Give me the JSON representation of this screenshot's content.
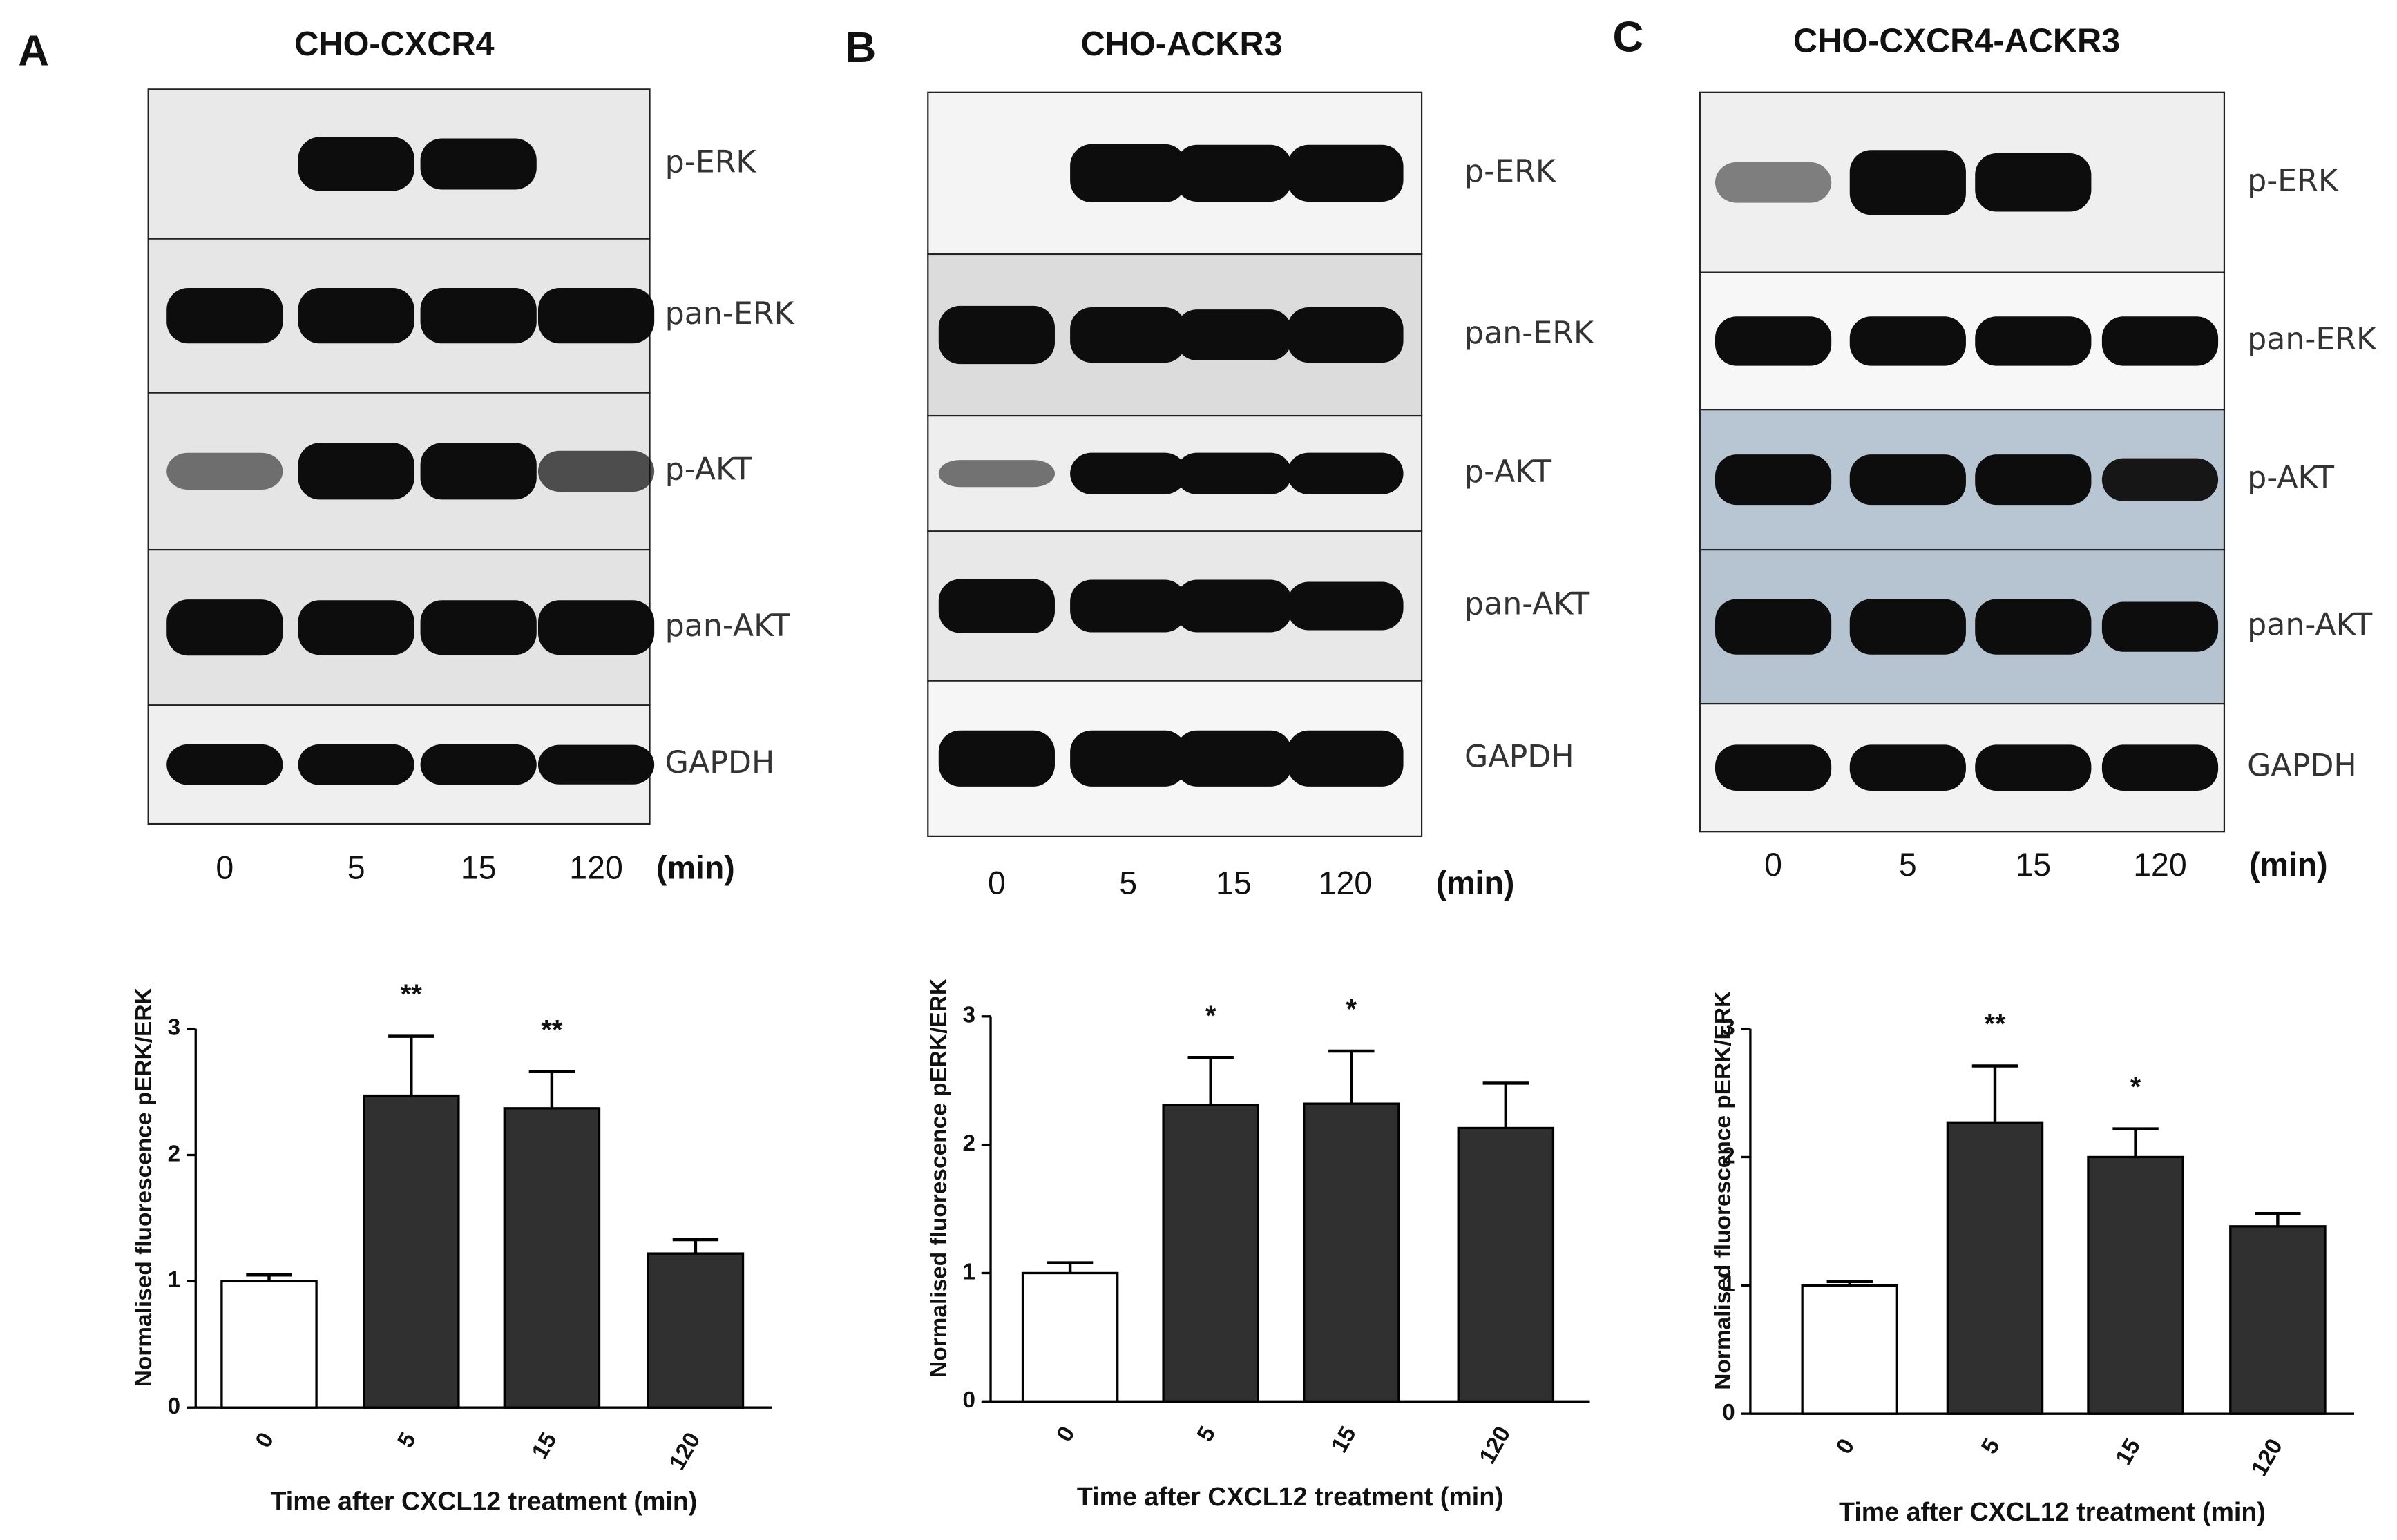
{
  "panels": [
    {
      "letter": "A",
      "title": "CHO-CXCR4",
      "blot_rows": [
        "p-ERK",
        "pan-ERK",
        "p-AKT",
        "pan-AKT",
        "GAPDH"
      ],
      "lanes": [
        "0",
        "5",
        "15",
        "120"
      ],
      "unit": "(min)"
    },
    {
      "letter": "B",
      "title": "CHO-ACKR3",
      "blot_rows": [
        "p-ERK",
        "pan-ERK",
        "p-AKT",
        "pan-AKT",
        "GAPDH"
      ],
      "lanes": [
        "0",
        "5",
        "15",
        "120"
      ],
      "unit": "(min)"
    },
    {
      "letter": "C",
      "title": "CHO-CXCR4-ACKR3",
      "blot_rows": [
        "p-ERK",
        "pan-ERK",
        "p-AKT",
        "pan-AKT",
        "GAPDH"
      ],
      "lanes": [
        "0",
        "5",
        "15",
        "120"
      ],
      "unit": "(min)"
    }
  ],
  "chart_data": [
    {
      "type": "bar",
      "x_label": "Time after CXCL12 treatment (min)",
      "y_label": "Normalised fluorescence pERK/ERK",
      "categories": [
        "0",
        "5",
        "15",
        "120"
      ],
      "values": [
        1.0,
        2.47,
        2.37,
        1.22
      ],
      "errors": [
        0.05,
        0.47,
        0.29,
        0.11
      ],
      "colors": [
        "#ffffff",
        "#303030",
        "#303030",
        "#303030"
      ],
      "annotations": [
        null,
        "**",
        "**",
        null
      ],
      "ylim": [
        0,
        3
      ],
      "yticks": [
        0,
        1,
        2,
        3
      ]
    },
    {
      "type": "bar",
      "x_label": "Time after CXCL12 treatment (min)",
      "y_label": "Normalised fluorescence pERK/ERK",
      "categories": [
        "0",
        "5",
        "15",
        "120"
      ],
      "values": [
        1.0,
        2.31,
        2.32,
        2.13
      ],
      "errors": [
        0.08,
        0.37,
        0.41,
        0.35
      ],
      "colors": [
        "#ffffff",
        "#303030",
        "#303030",
        "#303030"
      ],
      "annotations": [
        null,
        "*",
        "*",
        null
      ],
      "ylim": [
        0,
        3
      ],
      "yticks": [
        0,
        1,
        2,
        3
      ]
    },
    {
      "type": "bar",
      "x_label": "Time after CXCL12 treatment (min)",
      "y_label": "Normalised fluorescence pERK/ERK",
      "categories": [
        "0",
        "5",
        "15",
        "120"
      ],
      "values": [
        1.0,
        2.27,
        2.0,
        1.46
      ],
      "errors": [
        0.03,
        0.44,
        0.22,
        0.1
      ],
      "colors": [
        "#ffffff",
        "#303030",
        "#303030",
        "#303030"
      ],
      "annotations": [
        null,
        "**",
        "*",
        null
      ],
      "ylim": [
        0,
        3
      ],
      "yticks": [
        0,
        1,
        2,
        3
      ]
    }
  ]
}
